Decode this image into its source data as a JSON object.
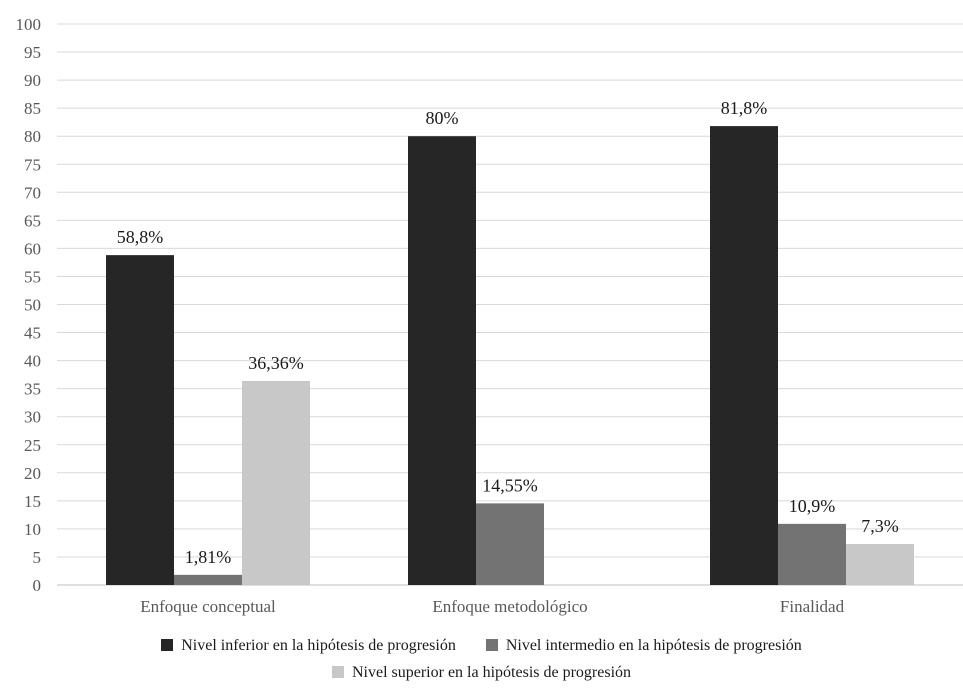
{
  "chart_data": {
    "type": "bar",
    "title": "",
    "xlabel": "",
    "ylabel": "",
    "ylim": [
      0,
      100
    ],
    "ytick_step": 5,
    "grid": true,
    "legend_position": "bottom",
    "categories": [
      "Enfoque conceptual",
      "Enfoque metodológico",
      "Finalidad"
    ],
    "series": [
      {
        "name": "Nivel inferior en la hipótesis de progresión",
        "color": "#262626",
        "values": [
          58.8,
          80,
          81.8
        ],
        "labels": [
          "58,8%",
          "80%",
          "81,8%"
        ]
      },
      {
        "name": "Nivel intermedio en la hipótesis de progresión",
        "color": "#737373",
        "values": [
          1.81,
          14.55,
          10.9
        ],
        "labels": [
          "1,81%",
          "14,55%",
          "10,9%"
        ]
      },
      {
        "name": "Nivel superior en la hipótesis de progresión",
        "color": "#c8c8c8",
        "values": [
          36.36,
          null,
          7.3
        ],
        "labels": [
          "36,36%",
          null,
          "7,3%"
        ]
      }
    ]
  }
}
